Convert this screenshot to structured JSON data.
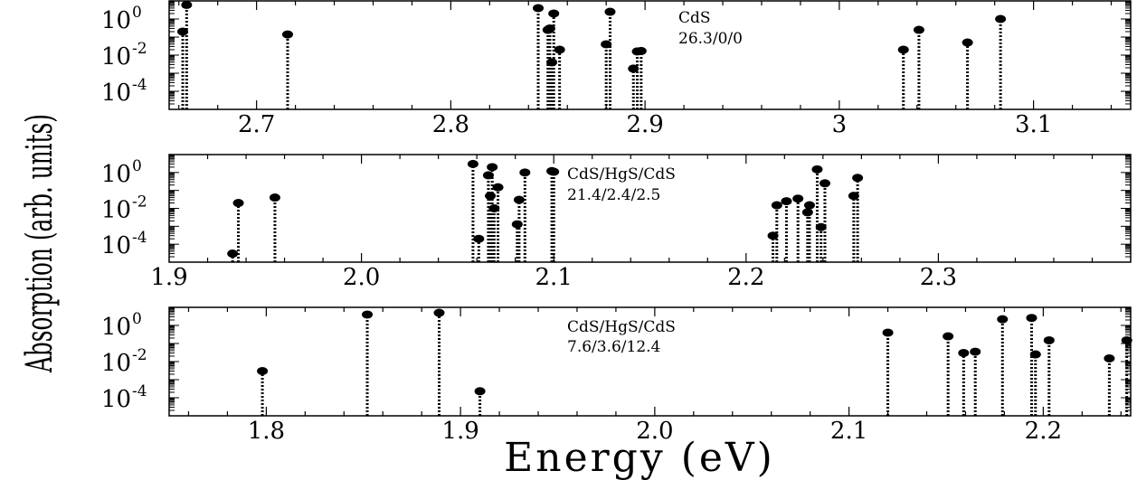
{
  "chart_data": {
    "type": "stem-scatter",
    "xlabel": "Energy (eV)",
    "ylabel": "Absorption (arb. units)",
    "y_scale": "log",
    "ylim": [
      1e-05,
      10
    ],
    "yticks": [
      {
        "base": "10",
        "exp": "0",
        "value": 1
      },
      {
        "base": "10",
        "exp": "-2",
        "value": 0.01
      },
      {
        "base": "10",
        "exp": "-4",
        "value": 0.0001
      }
    ],
    "panels": [
      {
        "id": "cds",
        "annotation": [
          "CdS",
          "26.3/0/0"
        ],
        "xlim": [
          2.655,
          3.15
        ],
        "xticks": [
          2.7,
          2.8,
          2.9,
          3,
          3.1
        ],
        "xtick_labels": [
          "2.7",
          "2.8",
          "2.9",
          "3",
          "3.1"
        ],
        "points": [
          {
            "x": 2.662,
            "y": 0.2
          },
          {
            "x": 2.664,
            "y": 6
          },
          {
            "x": 2.716,
            "y": 0.14
          },
          {
            "x": 2.845,
            "y": 4
          },
          {
            "x": 2.85,
            "y": 0.25
          },
          {
            "x": 2.851,
            "y": 0.3
          },
          {
            "x": 2.852,
            "y": 0.004
          },
          {
            "x": 2.853,
            "y": 2
          },
          {
            "x": 2.856,
            "y": 0.02
          },
          {
            "x": 2.88,
            "y": 0.04
          },
          {
            "x": 2.882,
            "y": 2.5
          },
          {
            "x": 2.894,
            "y": 0.0018
          },
          {
            "x": 2.896,
            "y": 0.016
          },
          {
            "x": 2.898,
            "y": 0.017
          },
          {
            "x": 3.033,
            "y": 0.02
          },
          {
            "x": 3.041,
            "y": 0.25
          },
          {
            "x": 3.066,
            "y": 0.05
          },
          {
            "x": 3.083,
            "y": 1.0
          }
        ]
      },
      {
        "id": "core-shell-1",
        "annotation": [
          "CdS/HgS/CdS",
          "21.4/2.4/2.5"
        ],
        "xlim": [
          1.9,
          2.4
        ],
        "xticks": [
          1.9,
          2.0,
          2.1,
          2.2,
          2.3
        ],
        "xtick_labels": [
          "1.9",
          "2.0",
          "2.1",
          "2.2",
          "2.3"
        ],
        "points": [
          {
            "x": 1.933,
            "y": 3e-05
          },
          {
            "x": 1.936,
            "y": 0.02
          },
          {
            "x": 1.955,
            "y": 0.04
          },
          {
            "x": 2.058,
            "y": 3
          },
          {
            "x": 2.061,
            "y": 0.0002
          },
          {
            "x": 2.066,
            "y": 0.7
          },
          {
            "x": 2.067,
            "y": 0.05
          },
          {
            "x": 2.068,
            "y": 2
          },
          {
            "x": 2.069,
            "y": 0.01
          },
          {
            "x": 2.071,
            "y": 0.15
          },
          {
            "x": 2.081,
            "y": 0.0013
          },
          {
            "x": 2.082,
            "y": 0.03
          },
          {
            "x": 2.085,
            "y": 1
          },
          {
            "x": 2.099,
            "y": 1.2
          },
          {
            "x": 2.1,
            "y": 1.1
          },
          {
            "x": 2.214,
            "y": 0.0003
          },
          {
            "x": 2.216,
            "y": 0.015
          },
          {
            "x": 2.221,
            "y": 0.025
          },
          {
            "x": 2.227,
            "y": 0.035
          },
          {
            "x": 2.232,
            "y": 0.006
          },
          {
            "x": 2.233,
            "y": 0.015
          },
          {
            "x": 2.237,
            "y": 1.5
          },
          {
            "x": 2.239,
            "y": 0.0009
          },
          {
            "x": 2.241,
            "y": 0.25
          },
          {
            "x": 2.256,
            "y": 0.05
          },
          {
            "x": 2.258,
            "y": 0.5
          }
        ]
      },
      {
        "id": "core-shell-2",
        "annotation": [
          "CdS/HgS/CdS",
          "7.6/3.6/12.4"
        ],
        "xlim": [
          1.75,
          2.245
        ],
        "xticks": [
          1.8,
          1.9,
          2.0,
          2.1,
          2.2
        ],
        "xtick_labels": [
          "1.8",
          "1.9",
          "2.0",
          "2.1",
          "2.2"
        ],
        "points": [
          {
            "x": 1.798,
            "y": 0.003
          },
          {
            "x": 1.852,
            "y": 4
          },
          {
            "x": 1.889,
            "y": 5
          },
          {
            "x": 1.91,
            "y": 0.00023
          },
          {
            "x": 2.12,
            "y": 0.4
          },
          {
            "x": 2.151,
            "y": 0.25
          },
          {
            "x": 2.159,
            "y": 0.03
          },
          {
            "x": 2.165,
            "y": 0.035
          },
          {
            "x": 2.179,
            "y": 2.2
          },
          {
            "x": 2.194,
            "y": 2.6
          },
          {
            "x": 2.196,
            "y": 0.025
          },
          {
            "x": 2.203,
            "y": 0.15
          },
          {
            "x": 2.234,
            "y": 0.015
          },
          {
            "x": 2.243,
            "y": 0.15
          }
        ]
      }
    ]
  }
}
